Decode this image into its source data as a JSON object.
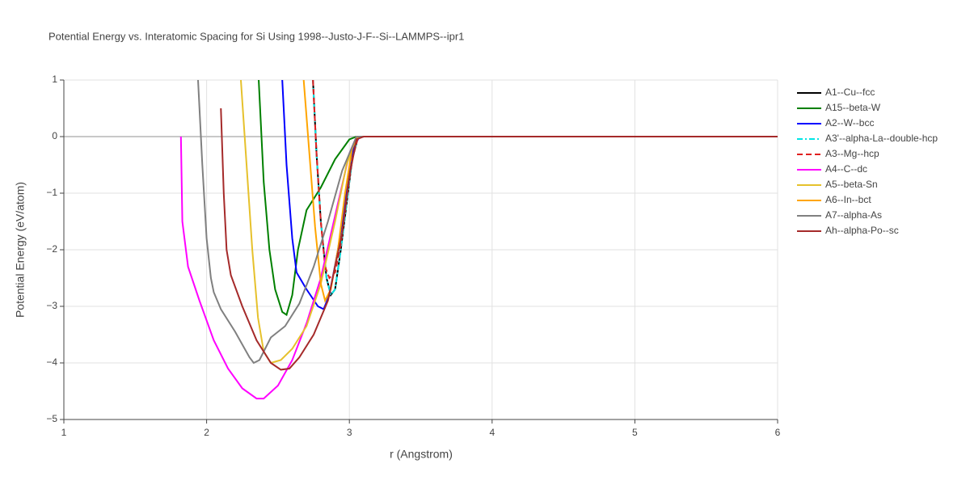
{
  "chart_data": {
    "type": "line",
    "title": "Potential Energy vs. Interatomic Spacing for Si Using 1998--Justo-J-F--Si--LAMMPS--ipr1",
    "x_label": "r (Angstrom)",
    "y_label": "Potential Energy (eV/atom)",
    "xlim": [
      1,
      6
    ],
    "ylim": [
      -5,
      1
    ],
    "xticks": [
      1,
      2,
      3,
      4,
      5,
      6
    ],
    "yticks": [
      {
        "value": -5,
        "label": "−5"
      },
      {
        "value": -4,
        "label": "−4"
      },
      {
        "value": -3,
        "label": "−3"
      },
      {
        "value": -2,
        "label": "−2"
      },
      {
        "value": -1,
        "label": "−1"
      },
      0,
      1
    ],
    "grid": true,
    "legend": "right",
    "series": [
      {
        "name": "A1--Cu--fcc",
        "color": "#000000",
        "dash": "solid",
        "x": [
          2.745,
          2.77,
          2.8,
          2.84,
          2.87,
          2.9,
          2.94,
          2.98,
          3.02,
          3.06,
          3.1,
          6
        ],
        "values": [
          1,
          -0.3,
          -1.5,
          -2.5,
          -2.8,
          -2.7,
          -2.0,
          -1.2,
          -0.4,
          -0.02,
          0,
          0
        ]
      },
      {
        "name": "A15--beta-W",
        "color": "#008000",
        "dash": "solid",
        "x": [
          2.365,
          2.4,
          2.44,
          2.48,
          2.53,
          2.56,
          2.6,
          2.64,
          2.7,
          2.8,
          2.9,
          3.0,
          3.05,
          6
        ],
        "values": [
          1,
          -0.8,
          -2.0,
          -2.7,
          -3.1,
          -3.15,
          -2.8,
          -2.0,
          -1.3,
          -0.9,
          -0.4,
          -0.05,
          0,
          0
        ]
      },
      {
        "name": "A2--W--bcc",
        "color": "#0000ff",
        "dash": "solid",
        "x": [
          2.53,
          2.56,
          2.6,
          2.63,
          2.7,
          2.78,
          2.82,
          2.86,
          2.92,
          2.98,
          3.03,
          3.07,
          6
        ],
        "values": [
          1,
          -0.5,
          -1.8,
          -2.4,
          -2.7,
          -3.0,
          -3.05,
          -2.8,
          -2.0,
          -1.0,
          -0.2,
          0,
          0
        ]
      },
      {
        "name": "A3'--alpha-La--double-hcp",
        "color": "#00e5e5",
        "dash": "dashdot",
        "x": [
          2.745,
          2.77,
          2.8,
          2.84,
          2.87,
          2.9,
          2.94,
          2.98,
          3.02,
          3.06,
          3.1,
          6
        ],
        "values": [
          1,
          -0.3,
          -1.5,
          -2.5,
          -2.8,
          -2.7,
          -2.0,
          -1.2,
          -0.4,
          -0.02,
          0,
          0
        ]
      },
      {
        "name": "A3--Mg--hcp",
        "color": "#e02020",
        "dash": "dash",
        "x": [
          2.745,
          2.77,
          2.8,
          2.83,
          2.86,
          2.9,
          2.94,
          2.98,
          3.02,
          3.06,
          3.1,
          6
        ],
        "values": [
          1,
          -0.3,
          -1.5,
          -2.3,
          -2.5,
          -2.4,
          -1.9,
          -1.1,
          -0.4,
          -0.02,
          0,
          0
        ]
      },
      {
        "name": "A4--C--dc",
        "color": "#ff00ff",
        "dash": "solid",
        "x": [
          1.82,
          1.83,
          1.87,
          1.95,
          2.05,
          2.15,
          2.25,
          2.35,
          2.4,
          2.5,
          2.6,
          2.7,
          2.8,
          2.9,
          3.0,
          3.05,
          6
        ],
        "values": [
          0,
          -1.5,
          -2.3,
          -2.9,
          -3.6,
          -4.1,
          -4.45,
          -4.63,
          -4.63,
          -4.4,
          -3.95,
          -3.3,
          -2.5,
          -1.4,
          -0.3,
          0,
          0
        ]
      },
      {
        "name": "A5--beta-Sn",
        "color": "#e6c12c",
        "dash": "solid",
        "x": [
          2.24,
          2.28,
          2.32,
          2.36,
          2.4,
          2.45,
          2.52,
          2.6,
          2.7,
          2.8,
          2.9,
          2.98,
          3.05,
          6
        ],
        "values": [
          1,
          -0.5,
          -2.0,
          -3.2,
          -3.8,
          -4.0,
          -3.95,
          -3.75,
          -3.35,
          -2.6,
          -1.5,
          -0.5,
          0,
          0
        ]
      },
      {
        "name": "A6--In--bct",
        "color": "#ffa500",
        "dash": "solid",
        "x": [
          2.68,
          2.72,
          2.76,
          2.8,
          2.83,
          2.87,
          2.92,
          2.97,
          3.02,
          3.06,
          6
        ],
        "values": [
          1,
          -0.3,
          -1.6,
          -2.6,
          -2.9,
          -2.7,
          -2.0,
          -1.0,
          -0.2,
          0,
          0
        ]
      },
      {
        "name": "A7--alpha-As",
        "color": "#808080",
        "dash": "solid",
        "x": [
          1.94,
          1.97,
          2.0,
          2.03,
          2.05,
          2.1,
          2.2,
          2.3,
          2.33,
          2.37,
          2.45,
          2.55,
          2.65,
          2.75,
          2.85,
          2.95,
          3.05,
          6
        ],
        "values": [
          1,
          -0.5,
          -1.8,
          -2.5,
          -2.75,
          -3.05,
          -3.45,
          -3.9,
          -4.0,
          -3.95,
          -3.55,
          -3.35,
          -2.95,
          -2.3,
          -1.5,
          -0.6,
          0,
          0
        ]
      },
      {
        "name": "Ah--alpha-Po--sc",
        "color": "#a52a2a",
        "dash": "solid",
        "x": [
          2.1,
          2.12,
          2.14,
          2.17,
          2.25,
          2.35,
          2.45,
          2.52,
          2.58,
          2.65,
          2.75,
          2.85,
          2.95,
          3.0,
          3.05,
          3.1,
          6
        ],
        "values": [
          0.5,
          -1.0,
          -2.0,
          -2.45,
          -3.0,
          -3.6,
          -4.0,
          -4.12,
          -4.1,
          -3.9,
          -3.5,
          -2.9,
          -1.7,
          -0.7,
          -0.05,
          0,
          0
        ]
      }
    ]
  }
}
